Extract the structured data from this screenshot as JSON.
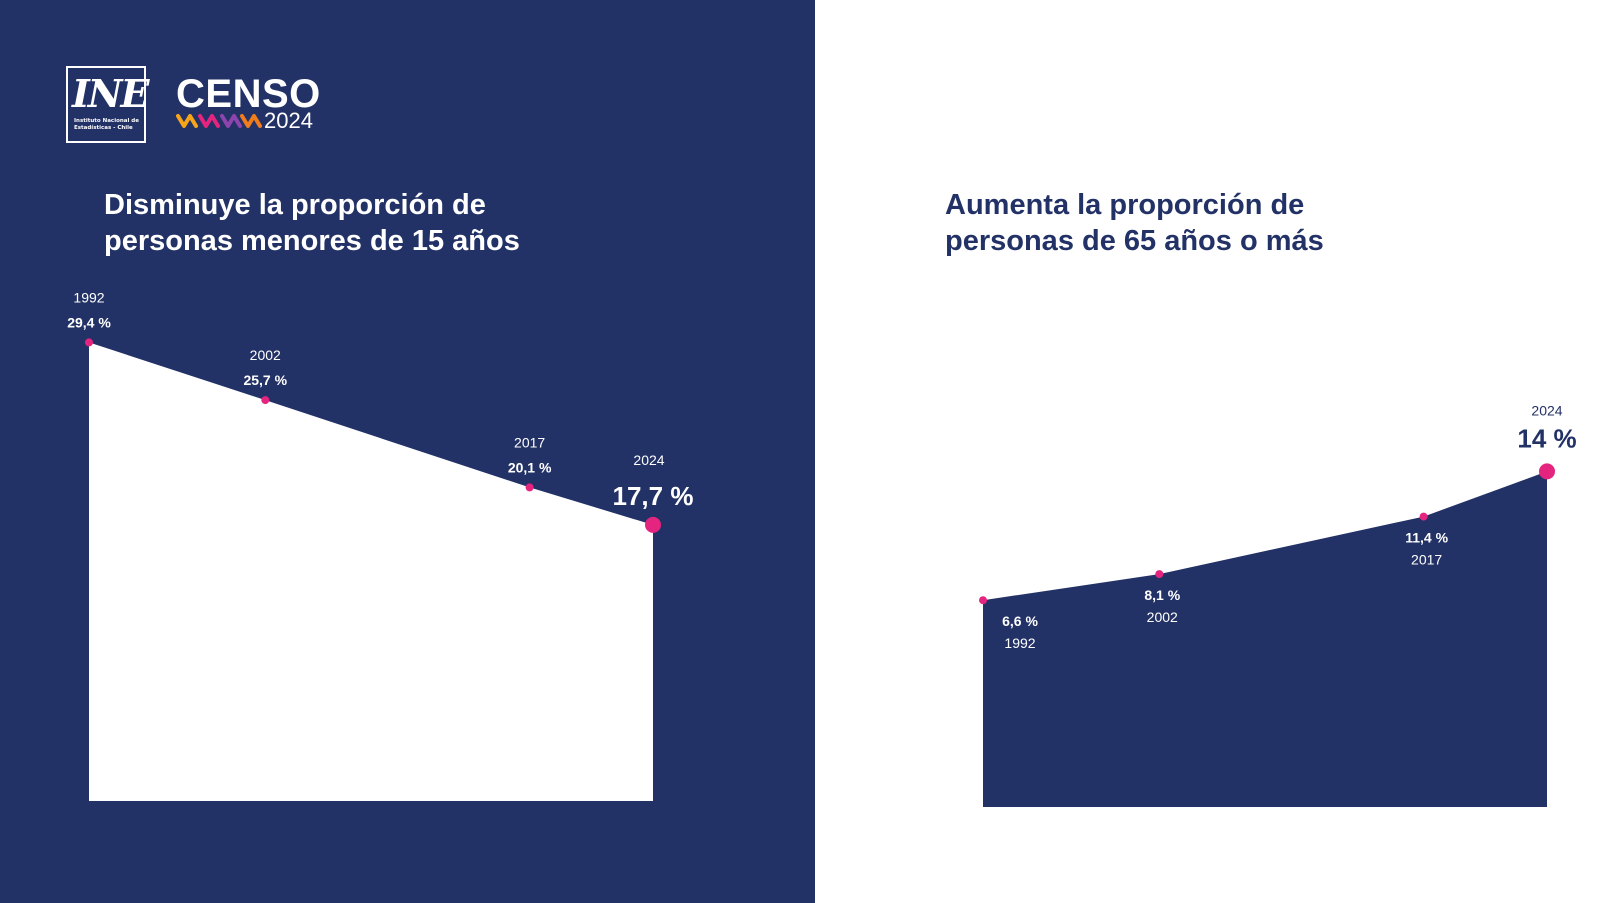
{
  "branding": {
    "ine_letters": "INE",
    "ine_subtitle_line1": "Instituto Nacional de",
    "ine_subtitle_line2": "Estadísticas - Chile",
    "censo_word": "CENSO",
    "censo_year": "2024"
  },
  "colors": {
    "navy": "#233266",
    "white": "#ffffff",
    "marker": "#e5247f"
  },
  "chart_data": [
    {
      "type": "area",
      "title": "Disminuye la proporción de\npersonas menores de 15 años",
      "x": [
        "1992",
        "2002",
        "2017",
        "2024"
      ],
      "value_labels": [
        "29,4 %",
        "25,7 %",
        "20,1 %",
        "17,7 %"
      ],
      "series": [
        {
          "values": [
            29.4,
            25.7,
            20.1,
            17.7
          ]
        }
      ],
      "grid": false
    },
    {
      "type": "area",
      "title": "Aumenta la proporción de\npersonas de 65 años o más",
      "x": [
        "1992",
        "2002",
        "2017",
        "2024"
      ],
      "value_labels": [
        "6,6 %",
        "8,1 %",
        "11,4 %",
        "14 %"
      ],
      "series": [
        {
          "values": [
            6.6,
            8.1,
            11.4,
            14.0
          ]
        }
      ],
      "grid": false
    }
  ]
}
